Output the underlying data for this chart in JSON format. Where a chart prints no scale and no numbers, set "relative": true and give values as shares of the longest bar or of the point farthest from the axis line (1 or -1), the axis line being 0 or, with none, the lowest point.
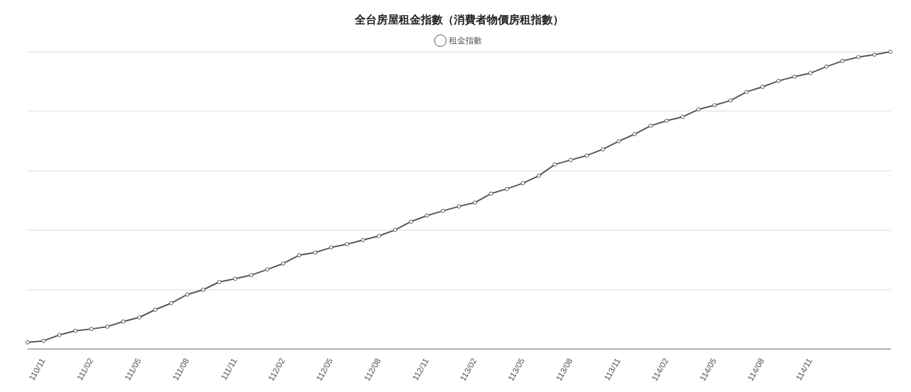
{
  "chart_data": {
    "type": "line",
    "title": "全台房屋租金指數（消費者物價房租指數）",
    "relative": true,
    "grid": "y",
    "legend": "top",
    "marker": "circle",
    "line_style": "solid",
    "categories": [
      null,
      "110/11",
      null,
      null,
      "111/02",
      null,
      null,
      "111/05",
      null,
      null,
      "111/08",
      null,
      null,
      "111/11",
      null,
      null,
      "112/02",
      null,
      null,
      "112/05",
      null,
      null,
      "112/08",
      null,
      null,
      "112/11",
      null,
      null,
      "113/02",
      null,
      null,
      "113/05",
      null,
      null,
      "113/08",
      null,
      null,
      "113/11",
      null,
      null,
      "114/02",
      null,
      null,
      "114/05",
      null,
      null,
      "114/08",
      null,
      null,
      "114/11",
      null,
      null,
      null,
      null,
      null
    ],
    "series": [
      {
        "name": "租金指數",
        "color": "#555555",
        "values": [
          0.023,
          0.028,
          0.048,
          0.062,
          0.068,
          0.076,
          0.093,
          0.107,
          0.133,
          0.155,
          0.184,
          0.2,
          0.226,
          0.237,
          0.249,
          0.268,
          0.288,
          0.316,
          0.325,
          0.342,
          0.353,
          0.367,
          0.381,
          0.401,
          0.429,
          0.449,
          0.465,
          0.48,
          0.493,
          0.523,
          0.539,
          0.558,
          0.583,
          0.621,
          0.636,
          0.651,
          0.672,
          0.699,
          0.723,
          0.751,
          0.768,
          0.781,
          0.806,
          0.82,
          0.836,
          0.865,
          0.882,
          0.902,
          0.916,
          0.928,
          0.95,
          0.969,
          0.982,
          0.99,
          1
        ]
      }
    ]
  }
}
